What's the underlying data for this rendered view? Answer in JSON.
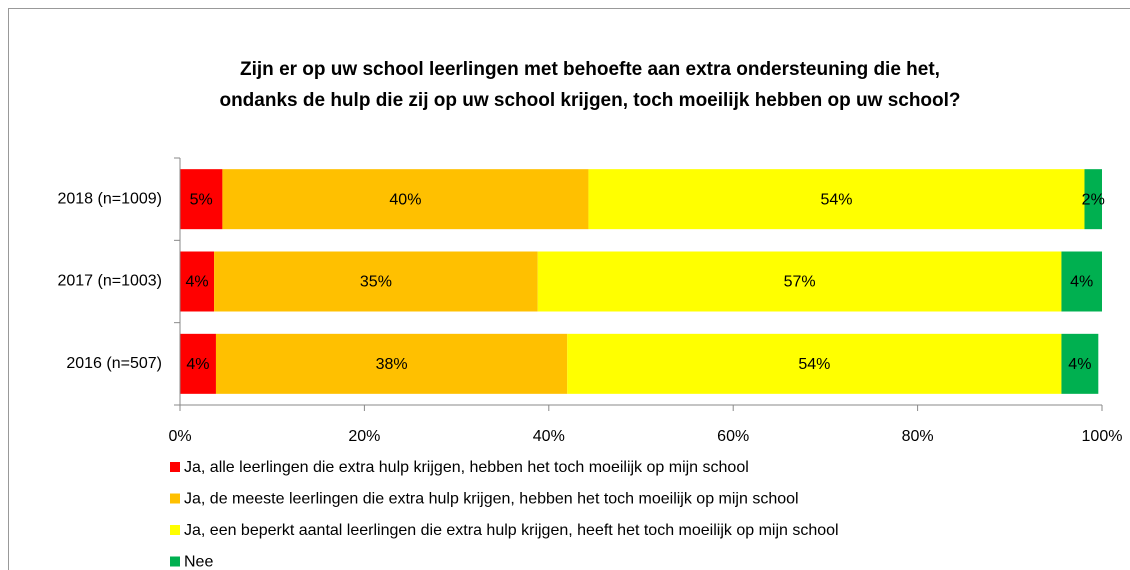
{
  "chart_data": {
    "type": "stacked_bar_horizontal",
    "title": [
      "Zijn er op uw school leerlingen met behoefte aan extra ondersteuning die het,",
      "ondanks de hulp die zij op uw school krijgen, toch moeilijk hebben op uw school?"
    ],
    "categories": [
      "2018 (n=1009)",
      "2017 (n=1003)",
      "2016 (n=507)"
    ],
    "series": [
      {
        "name": "Ja, alle leerlingen die extra hulp krijgen, hebben het toch moeilijk op mijn school",
        "color": "#ff0000",
        "values": [
          4.6,
          3.7,
          3.9
        ],
        "value_labels": [
          "5%",
          "4%",
          "4%"
        ]
      },
      {
        "name": "Ja, de meeste leerlingen die extra hulp krijgen, hebben het toch moeilijk op mijn school",
        "color": "#ffc000",
        "values": [
          39.7,
          35.1,
          38.1
        ],
        "value_labels": [
          "40%",
          "35%",
          "38%"
        ]
      },
      {
        "name": "Ja, een beperkt aantal leerlingen die extra hulp krijgen, heeft het toch moeilijk op mijn school",
        "color": "#ffff00",
        "values": [
          53.8,
          56.8,
          53.6
        ],
        "value_labels": [
          "54%",
          "57%",
          "54%"
        ]
      },
      {
        "name": "Nee",
        "color": "#00b050",
        "values": [
          1.9,
          4.4,
          4.0
        ],
        "value_labels": [
          "2%",
          "4%",
          "4%"
        ]
      }
    ],
    "xlim": [
      0,
      100
    ],
    "xticks": [
      {
        "value": 0,
        "label": "0%"
      },
      {
        "value": 20,
        "label": "20%"
      },
      {
        "value": 40,
        "label": "40%"
      },
      {
        "value": 60,
        "label": "60%"
      },
      {
        "value": 80,
        "label": "80%"
      },
      {
        "value": 100,
        "label": "100%"
      }
    ],
    "legend": "bottom"
  }
}
